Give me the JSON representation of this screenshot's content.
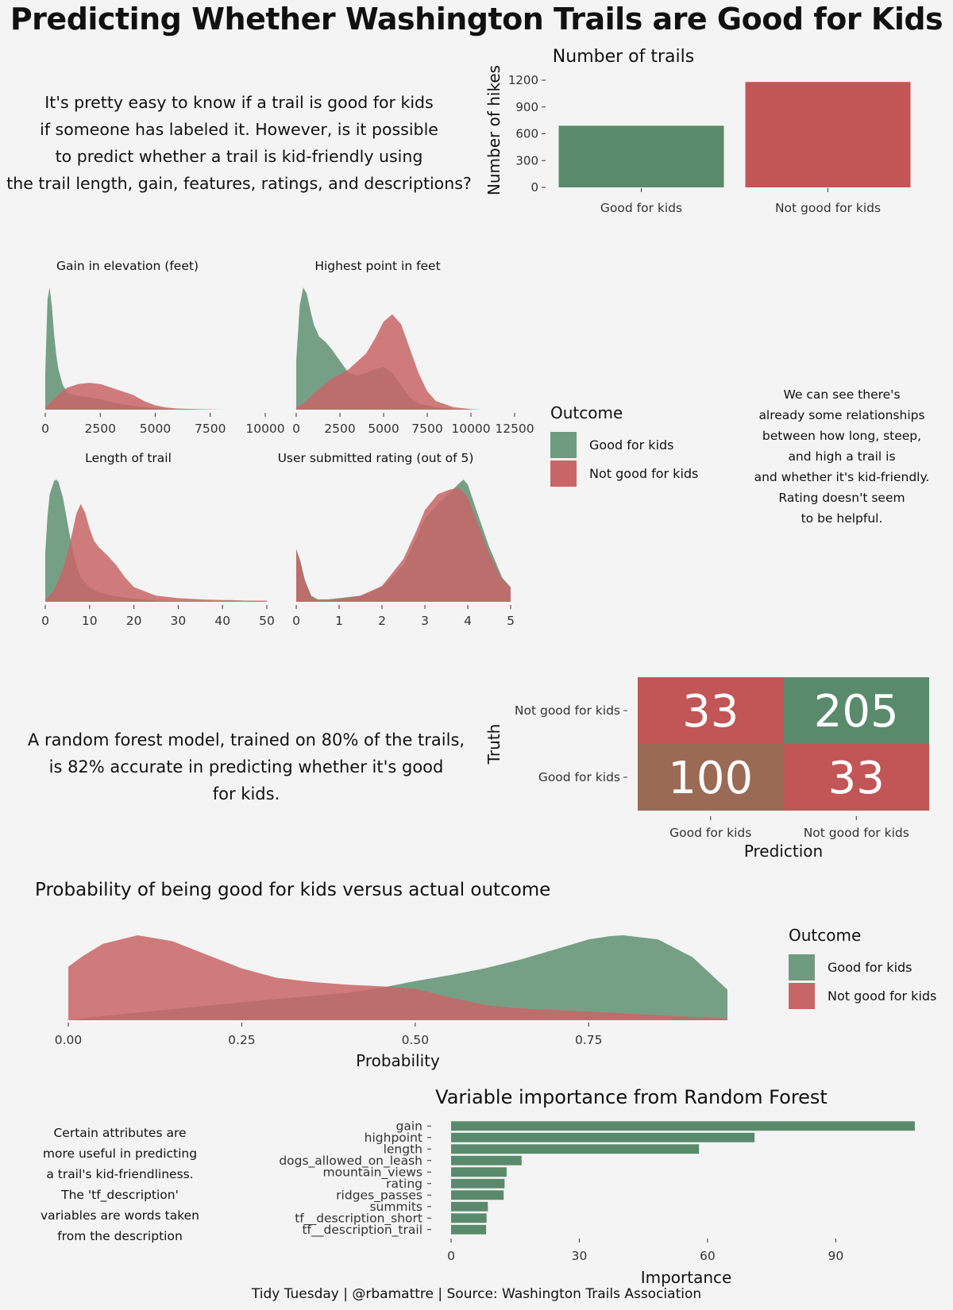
{
  "title": "Predicting Whether Washington Trails are Good for Kids",
  "intro": {
    "lines": [
      "It's pretty easy to know if a trail is good for kids",
      "if someone has labeled it. However, is it possible",
      "to predict whether a trail is kid-friendly using",
      "the trail length, gain, features, ratings, and descriptions?"
    ]
  },
  "relationship_note": {
    "lines": [
      "We can see there's",
      "already some relationships",
      "between how long, steep,",
      "and high a trail is",
      "and whether it's kid-friendly.",
      "Rating doesn't seem",
      "to be helpful."
    ]
  },
  "model_note": {
    "lines": [
      "A random forest model, trained on 80% of the trails,",
      "is 82% accurate in predicting whether it's good",
      "for kids."
    ]
  },
  "attributes_note": {
    "lines": [
      "Certain attributes are",
      "more useful in predicting",
      "a trail's kid-friendliness.",
      "The 'tf_description'",
      "variables are words taken",
      "from the description"
    ]
  },
  "caption": "Tidy Tuesday | @rbamattre | Source: Washington Trails Association",
  "legend": {
    "title": "Outcome",
    "items": [
      "Good for kids",
      "Not good for kids"
    ]
  },
  "colors": {
    "good": "#5a8a6c",
    "not_good": "#c25556",
    "good_density": "#6f9b80",
    "not_good_density": "#c86566",
    "cm_mixed": "#9b6a55",
    "background": "#f4f4f4"
  },
  "chart_data": [
    {
      "id": "count",
      "type": "bar",
      "title": "Number of trails",
      "xlabel": "",
      "ylabel": "Number of hikes",
      "categories": [
        "Good for kids",
        "Not good for kids"
      ],
      "values": [
        690,
        1180
      ],
      "ylim": [
        0,
        1280
      ],
      "yticks": [
        0,
        300,
        600,
        900,
        1200
      ],
      "grid": false
    },
    {
      "id": "gain",
      "type": "area",
      "title": "Gain in elevation (feet)",
      "xlim": [
        0,
        10000
      ],
      "xticks": [
        0,
        2500,
        5000,
        7500,
        10000
      ],
      "series": [
        {
          "name": "Good for kids",
          "x": [
            0,
            100,
            200,
            300,
            400,
            500,
            600,
            800,
            1000,
            1300,
            1600,
            2000,
            2500,
            3000,
            4000,
            5000,
            6000,
            7000,
            8000
          ],
          "y": [
            0.3,
            0.9,
            1.0,
            0.85,
            0.62,
            0.45,
            0.33,
            0.2,
            0.14,
            0.12,
            0.11,
            0.1,
            0.085,
            0.06,
            0.03,
            0.012,
            0.004,
            0.001,
            0
          ]
        },
        {
          "name": "Not good for kids",
          "x": [
            0,
            200,
            400,
            700,
            1000,
            1500,
            2000,
            2500,
            3000,
            3500,
            4000,
            4500,
            5000,
            5500,
            6000,
            7000,
            8000
          ],
          "y": [
            0.02,
            0.05,
            0.09,
            0.14,
            0.18,
            0.21,
            0.22,
            0.21,
            0.18,
            0.15,
            0.12,
            0.07,
            0.035,
            0.018,
            0.01,
            0.004,
            0
          ]
        }
      ]
    },
    {
      "id": "highpoint",
      "type": "area",
      "title": "Highest point in feet",
      "xlim": [
        0,
        12500
      ],
      "xticks": [
        0,
        2500,
        5000,
        7500,
        10000,
        12500
      ],
      "series": [
        {
          "name": "Good for kids",
          "x": [
            0,
            200,
            400,
            600,
            800,
            1000,
            1300,
            1700,
            2000,
            2500,
            3000,
            3500,
            4000,
            4500,
            5000,
            5500,
            6000,
            6500,
            7000,
            8000,
            9000,
            10000
          ],
          "y": [
            0.4,
            0.85,
            1.0,
            0.95,
            0.82,
            0.7,
            0.6,
            0.55,
            0.5,
            0.4,
            0.3,
            0.28,
            0.3,
            0.33,
            0.35,
            0.3,
            0.2,
            0.1,
            0.05,
            0.02,
            0.005,
            0
          ]
        },
        {
          "name": "Not good for kids",
          "x": [
            0,
            500,
            1000,
            2000,
            3000,
            4000,
            4500,
            5000,
            5500,
            6000,
            6500,
            7000,
            7500,
            8000,
            9000,
            10000,
            10500
          ],
          "y": [
            0.02,
            0.06,
            0.13,
            0.25,
            0.33,
            0.46,
            0.58,
            0.72,
            0.78,
            0.7,
            0.5,
            0.3,
            0.15,
            0.07,
            0.02,
            0.005,
            0
          ]
        }
      ]
    },
    {
      "id": "length",
      "type": "area",
      "title": "Length of trail",
      "xlim": [
        0,
        50
      ],
      "xticks": [
        0,
        10,
        20,
        30,
        40,
        50
      ],
      "series": [
        {
          "name": "Good for kids",
          "x": [
            0,
            0.5,
            1,
            2,
            2.5,
            3,
            4,
            5,
            6,
            7,
            8,
            10,
            12,
            15,
            20,
            25,
            30,
            35,
            40,
            45,
            50
          ],
          "y": [
            0.4,
            0.7,
            0.88,
            0.99,
            1.0,
            0.98,
            0.85,
            0.65,
            0.45,
            0.3,
            0.2,
            0.12,
            0.08,
            0.05,
            0.025,
            0.01,
            0.005,
            0.003,
            0.002,
            0.001,
            0
          ]
        },
        {
          "name": "Not good for kids",
          "x": [
            0,
            1,
            2,
            3,
            4,
            5,
            6,
            7,
            8,
            9,
            10,
            11,
            12,
            14,
            16,
            18,
            20,
            25,
            30,
            35,
            40,
            42,
            45,
            50
          ],
          "y": [
            0.02,
            0.05,
            0.1,
            0.18,
            0.27,
            0.4,
            0.55,
            0.72,
            0.8,
            0.73,
            0.6,
            0.5,
            0.45,
            0.38,
            0.3,
            0.2,
            0.12,
            0.05,
            0.03,
            0.02,
            0.015,
            0.015,
            0.01,
            0.01
          ]
        }
      ]
    },
    {
      "id": "rating",
      "type": "area",
      "title": "User submitted rating (out of 5)",
      "xlim": [
        0,
        5
      ],
      "xticks": [
        0,
        1,
        2,
        3,
        4,
        5
      ],
      "series": [
        {
          "name": "Good for kids",
          "x": [
            0,
            0.1,
            0.2,
            0.35,
            0.5,
            0.75,
            1,
            1.5,
            2,
            2.5,
            2.8,
            3,
            3.3,
            3.6,
            3.8,
            3.9,
            4.0,
            4.2,
            4.5,
            4.8,
            5
          ],
          "y": [
            0.43,
            0.33,
            0.18,
            0.05,
            0.02,
            0.02,
            0.03,
            0.05,
            0.12,
            0.3,
            0.52,
            0.68,
            0.8,
            0.9,
            0.97,
            1.0,
            0.96,
            0.75,
            0.45,
            0.2,
            0.12
          ]
        },
        {
          "name": "Not good for kids",
          "x": [
            0,
            0.1,
            0.2,
            0.35,
            0.5,
            0.75,
            1,
            1.5,
            2,
            2.5,
            2.8,
            3,
            3.3,
            3.6,
            3.8,
            4.0,
            4.2,
            4.5,
            4.8,
            5
          ],
          "y": [
            0.43,
            0.32,
            0.17,
            0.04,
            0.015,
            0.015,
            0.02,
            0.05,
            0.13,
            0.35,
            0.58,
            0.75,
            0.88,
            0.92,
            0.93,
            0.86,
            0.67,
            0.4,
            0.18,
            0.12
          ]
        }
      ]
    },
    {
      "id": "confusion",
      "type": "heatmap",
      "xlabel": "Prediction",
      "ylabel": "Truth",
      "x_categories": [
        "Good for kids",
        "Not good for kids"
      ],
      "y_categories": [
        "Not good for kids",
        "Good for kids"
      ],
      "cells": [
        {
          "truth": "Not good for kids",
          "prediction": "Good for kids",
          "value": 33
        },
        {
          "truth": "Not good for kids",
          "prediction": "Not good for kids",
          "value": 205
        },
        {
          "truth": "Good for kids",
          "prediction": "Good for kids",
          "value": 100
        },
        {
          "truth": "Good for kids",
          "prediction": "Not good for kids",
          "value": 33
        }
      ]
    },
    {
      "id": "probability",
      "type": "area",
      "title": "Probability of being good for kids versus actual outcome",
      "xlabel": "Probability",
      "xlim": [
        0,
        0.95
      ],
      "xticks": [
        0.0,
        0.25,
        0.5,
        0.75
      ],
      "series": [
        {
          "name": "Good for kids",
          "x": [
            0,
            0.05,
            0.1,
            0.2,
            0.3,
            0.4,
            0.45,
            0.5,
            0.55,
            0.6,
            0.65,
            0.7,
            0.75,
            0.78,
            0.8,
            0.85,
            0.9,
            0.95
          ],
          "y": [
            0.0,
            0.05,
            0.09,
            0.17,
            0.25,
            0.32,
            0.38,
            0.46,
            0.53,
            0.61,
            0.71,
            0.83,
            0.95,
            0.99,
            1.0,
            0.95,
            0.74,
            0.36
          ]
        },
        {
          "name": "Not good for kids",
          "x": [
            0,
            0.02,
            0.05,
            0.1,
            0.15,
            0.2,
            0.25,
            0.3,
            0.35,
            0.4,
            0.45,
            0.5,
            0.55,
            0.6,
            0.65,
            0.7,
            0.8,
            0.9,
            0.95
          ],
          "y": [
            0.63,
            0.75,
            0.9,
            1.0,
            0.93,
            0.77,
            0.61,
            0.5,
            0.45,
            0.42,
            0.4,
            0.37,
            0.27,
            0.18,
            0.14,
            0.12,
            0.08,
            0.04,
            0.02
          ]
        }
      ]
    },
    {
      "id": "importance",
      "type": "bar",
      "orientation": "horizontal",
      "title": "Variable importance from Random Forest",
      "xlabel": "Importance",
      "xlim": [
        0,
        110
      ],
      "xticks": [
        0,
        30,
        60,
        90
      ],
      "categories": [
        "gain",
        "highpoint",
        "length",
        "dogs_allowed_on_leash",
        "mountain_views",
        "rating",
        "ridges_passes",
        "summits",
        "tf__description_short",
        "tf__description_trail"
      ],
      "values": [
        108.5,
        71,
        58,
        16.5,
        13,
        12.5,
        12.3,
        8.6,
        8.3,
        8.2
      ]
    }
  ]
}
